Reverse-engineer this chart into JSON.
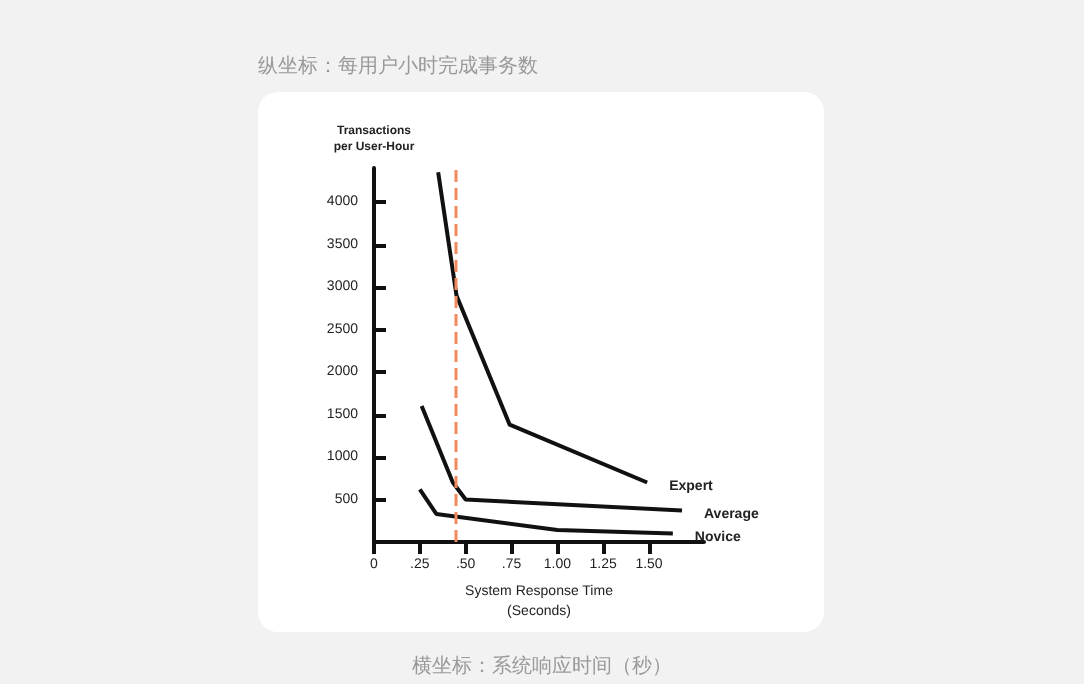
{
  "chart_data": {
    "type": "line",
    "xlabel": "System Response Time\n(Seconds)",
    "ylabel": "Transactions\nper User-Hour",
    "annotations": [
      "纵坐标：每用户小时完成事务数",
      "横坐标：系统响应时间（秒）"
    ],
    "series": [
      {
        "name": "Expert",
        "color": "#111111",
        "x": [
          0.35,
          0.45,
          0.74,
          1.49
        ],
        "values": [
          4350,
          2900,
          1380,
          700
        ]
      },
      {
        "name": "Average",
        "color": "#111111",
        "x": [
          0.26,
          0.43,
          0.5,
          1.68
        ],
        "values": [
          1600,
          700,
          500,
          370
        ]
      },
      {
        "name": "Novice",
        "color": "#111111",
        "x": [
          0.25,
          0.34,
          1.0,
          1.63
        ],
        "values": [
          620,
          330,
          140,
          100
        ]
      }
    ],
    "xlim": [
      0,
      1.8
    ],
    "xticks": [
      0,
      {
        "value": 0.25,
        "label": ".25"
      },
      {
        "value": 0.5,
        "label": ".50"
      },
      {
        "value": 0.75,
        "label": ".75"
      },
      {
        "value": 1,
        "label": "1.00"
      },
      {
        "value": 1.25,
        "label": "1.25"
      },
      {
        "value": 1.5,
        "label": "1.50"
      }
    ],
    "ylim": [
      0,
      4400
    ],
    "yticks": [
      500,
      1000,
      1500,
      2000,
      2500,
      3000,
      3500,
      4000
    ],
    "ref_lines": [
      {
        "axis": "x",
        "value": 0.44,
        "color": "#f08a5d",
        "line_style": "dashed"
      }
    ],
    "grid": false,
    "legend": false,
    "marker": "none",
    "line_style": "solid"
  }
}
